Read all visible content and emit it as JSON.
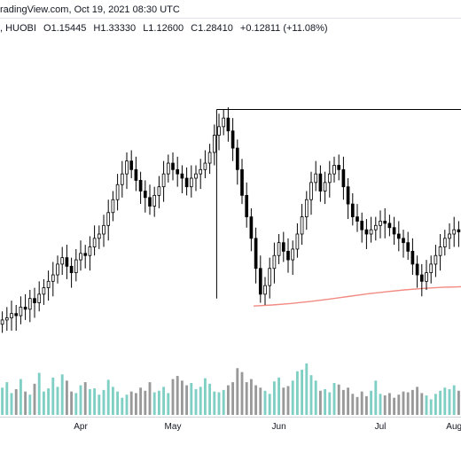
{
  "header": {
    "source_line": "radingView.com, Oct 19, 2021 08:30 UTC",
    "exchange": ", HUOBI",
    "open": "O1.15445",
    "high": "H1.33330",
    "low": "L1.12600",
    "close": "C1.28410",
    "change": "+0.12811 (+11.08%)"
  },
  "chart_data": {
    "type": "candlestick",
    "x_ticks": [
      "Apr",
      "May",
      "Jun",
      "Jul",
      "Aug"
    ],
    "y_visible_range_estimate": [
      0.3,
      1.6
    ],
    "colors": {
      "candle_up_fill": "#ffffff",
      "candle_down_fill": "#000000",
      "candle_outline": "#000000",
      "moving_average": "#f28b82",
      "volume_up": "#7fcfc4",
      "volume_down": "#999999",
      "bracket_line": "#000000"
    },
    "moving_average": {
      "series": [
        0.485,
        0.49,
        0.497,
        0.506,
        0.517,
        0.529,
        0.541,
        0.551,
        0.56,
        0.567,
        0.572,
        0.575
      ]
    },
    "candles_close_estimate": [
      0.42,
      0.43,
      0.45,
      0.44,
      0.48,
      0.47,
      0.52,
      0.5,
      0.54,
      0.57,
      0.6,
      0.63,
      0.68,
      0.71,
      0.67,
      0.64,
      0.7,
      0.73,
      0.72,
      0.76,
      0.8,
      0.82,
      0.86,
      0.92,
      0.98,
      1.05,
      1.1,
      1.16,
      1.12,
      1.07,
      1.02,
      0.99,
      0.95,
      1.0,
      1.04,
      1.1,
      1.15,
      1.12,
      1.1,
      1.08,
      1.04,
      1.08,
      1.1,
      1.12,
      1.15,
      1.2,
      1.28,
      1.32,
      1.36,
      1.3,
      1.22,
      1.12,
      1.0,
      0.9,
      0.8,
      0.66,
      0.54,
      0.58,
      0.66,
      0.72,
      0.78,
      0.74,
      0.7,
      0.75,
      0.82,
      0.9,
      0.98,
      1.06,
      1.1,
      1.02,
      1.06,
      1.1,
      1.14,
      1.12,
      1.04,
      0.96,
      0.9,
      0.88,
      0.84,
      0.82,
      0.84,
      0.86,
      0.88,
      0.87,
      0.85,
      0.82,
      0.8,
      0.78,
      0.74,
      0.68,
      0.63,
      0.6,
      0.64,
      0.68,
      0.72,
      0.76,
      0.8,
      0.82,
      0.84,
      0.83
    ],
    "volume_estimate": [
      35,
      42,
      28,
      33,
      46,
      30,
      26,
      40,
      54,
      30,
      34,
      48,
      36,
      52,
      44,
      30,
      28,
      38,
      42,
      33,
      34,
      26,
      32,
      45,
      36,
      30,
      22,
      26,
      30,
      28,
      35,
      31,
      42,
      29,
      31,
      36,
      28,
      46,
      50,
      44,
      38,
      41,
      33,
      36,
      47,
      40,
      30,
      29,
      32,
      38,
      42,
      60,
      55,
      42,
      46,
      38,
      35,
      31,
      27,
      43,
      48,
      35,
      37,
      44,
      56,
      58,
      66,
      51,
      44,
      31,
      33,
      29,
      41,
      39,
      32,
      35,
      27,
      23,
      30,
      24,
      31,
      44,
      27,
      25,
      28,
      22,
      26,
      30,
      29,
      32,
      36,
      28,
      25,
      20,
      27,
      31,
      35,
      33,
      38,
      31
    ],
    "bracket": {
      "top_price": 1.4
    }
  }
}
